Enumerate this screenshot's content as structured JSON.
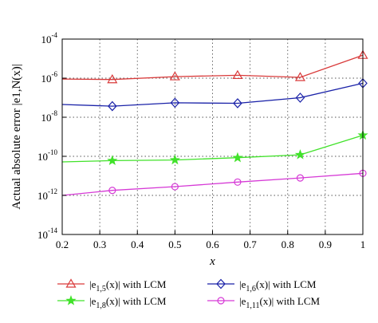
{
  "chart_data": {
    "type": "line",
    "xlabel": "x",
    "ylabel": "Actual absolute error |e1,N(x)|",
    "x_ticks": [
      "0.2",
      "0.3",
      "0.4",
      "0.5",
      "0.6",
      "0.7",
      "0.8",
      "0.9",
      "1"
    ],
    "xlim": [
      0.2,
      1
    ],
    "y_scale": "log",
    "ylim": [
      1e-14,
      0.0001
    ],
    "y_ticks": [
      {
        "base": "10",
        "exp": "-14",
        "value": 1e-14
      },
      {
        "base": "10",
        "exp": "-12",
        "value": 1e-12
      },
      {
        "base": "10",
        "exp": "-10",
        "value": 1e-10
      },
      {
        "base": "10",
        "exp": "-8",
        "value": 1e-08
      },
      {
        "base": "10",
        "exp": "-6",
        "value": 1e-06
      },
      {
        "base": "10",
        "exp": "-4",
        "value": 0.0001
      }
    ],
    "grid": true,
    "legend_position": "bottom",
    "series": [
      {
        "name": "|e1,5(x)| with LCM",
        "label_main": "|e",
        "label_sub": "1,5",
        "label_rest": "(x)| with LCM",
        "color": "#d93a3a",
        "marker": "triangle",
        "x": [
          0.2,
          0.3333,
          0.5,
          0.6667,
          0.8333,
          1.0
        ],
        "y": [
          9e-07,
          8.5e-07,
          1.2e-06,
          1.4e-06,
          1.1e-06,
          1.5e-05
        ],
        "marked": [
          false,
          true,
          true,
          true,
          true,
          true
        ]
      },
      {
        "name": "|e1,6(x)| with LCM",
        "label_main": "|e",
        "label_sub": "1,6",
        "label_rest": "(x)| with LCM",
        "color": "#1a22a8",
        "marker": "diamond",
        "x": [
          0.2,
          0.3333,
          0.5,
          0.6667,
          0.8333,
          1.0
        ],
        "y": [
          4.5e-08,
          3.7e-08,
          5.5e-08,
          5.2e-08,
          1e-07,
          5.5e-07
        ],
        "marked": [
          false,
          true,
          true,
          true,
          true,
          true
        ]
      },
      {
        "name": "|e1,8(x)| with LCM",
        "label_main": "|e",
        "label_sub": "1,8",
        "label_rest": "(x)| with LCM",
        "color": "#41e22a",
        "marker": "star",
        "x": [
          0.2,
          0.3333,
          0.5,
          0.6667,
          0.8333,
          1.0
        ],
        "y": [
          5.2e-11,
          6e-11,
          6.5e-11,
          8.5e-11,
          1.2e-10,
          1.2e-09
        ],
        "marked": [
          false,
          true,
          true,
          true,
          true,
          true
        ]
      },
      {
        "name": "|e1,11(x)| with LCM",
        "label_main": "|e",
        "label_sub": "1,11",
        "label_rest": "(x)| with LCM",
        "color": "#d63ad6",
        "marker": "circle",
        "x": [
          0.2,
          0.3333,
          0.5,
          0.6667,
          0.8333,
          1.0
        ],
        "y": [
          1e-12,
          1.8e-12,
          2.8e-12,
          4.8e-12,
          7.8e-12,
          1.35e-11
        ],
        "marked": [
          false,
          true,
          true,
          true,
          true,
          true
        ]
      }
    ]
  }
}
